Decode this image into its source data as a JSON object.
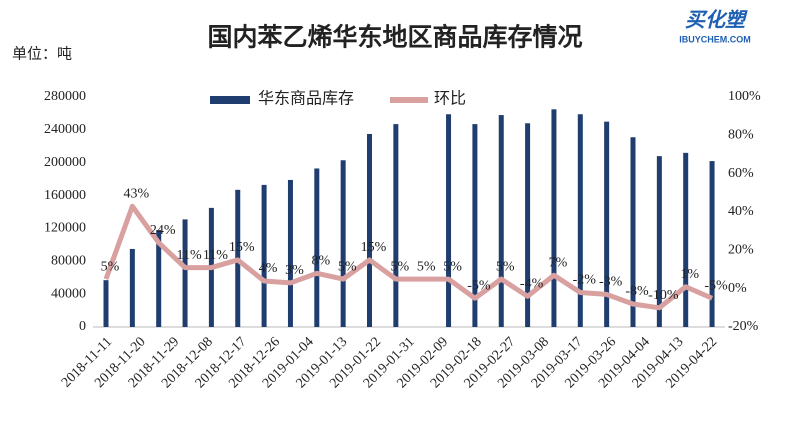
{
  "chart_data": {
    "type": "bar_line",
    "title": "国内苯乙烯华东地区商品库存情况",
    "unit_label": "单位：吨",
    "logo": {
      "main": "买化塑",
      "sub": "IBUYCHEM.COM"
    },
    "categories": [
      null,
      null,
      null,
      null,
      null,
      null,
      null,
      null,
      null,
      null,
      null,
      null,
      null,
      null,
      null,
      null,
      null,
      null,
      null,
      null,
      null,
      null,
      null,
      null
    ],
    "x_date_labels": [
      "2018-11-11",
      "2018-11-20",
      "2018-11-29",
      "2018-12-08",
      "2018-12-17",
      "2018-12-26",
      "2019-01-04",
      "2019-01-13",
      "2019-01-22",
      "2019-01-31",
      "2019-02-09",
      "2019-02-18",
      "2019-02-27",
      "2019-03-08",
      "2019-03-17",
      "2019-03-26",
      "2019-04-04",
      "2019-04-13",
      "2019-04-22"
    ],
    "series": [
      {
        "name": "华东商品库存",
        "type": "bar",
        "color": "#1f3d6e",
        "values": [
          57000,
          95000,
          118000,
          131000,
          145000,
          167000,
          173000,
          179000,
          193000,
          203000,
          235000,
          247000,
          null,
          259000,
          247000,
          258000,
          248000,
          265000,
          259000,
          250000,
          231000,
          208000,
          212000,
          202000
        ]
      },
      {
        "name": "环比",
        "type": "line",
        "axis": "y2",
        "color": "#d9a0a0",
        "values": [
          5,
          43,
          24,
          11,
          11,
          15,
          4,
          3,
          8,
          5,
          15,
          5,
          5,
          5,
          -5,
          5,
          -4,
          7,
          -2,
          -3,
          -8,
          -10,
          1,
          -5
        ],
        "value_labels": [
          "5%",
          "43%",
          "24%",
          "11%",
          "11%",
          "15%",
          "4%",
          "3%",
          "8%",
          "5%",
          "15%",
          "5%",
          "5%",
          "5%",
          "-5%",
          "5%",
          "-4%",
          "7%",
          "-2%",
          "-3%",
          "-8%",
          "-10%",
          "1%",
          "-5%"
        ]
      }
    ],
    "ylim": [
      0,
      280000
    ],
    "yticks": [
      0,
      40000,
      80000,
      120000,
      160000,
      200000,
      240000,
      280000
    ],
    "y2lim": [
      -20,
      100
    ],
    "y2ticks": [
      {
        "value": -20,
        "label": "-20%"
      },
      {
        "value": 0,
        "label": "0%"
      },
      {
        "value": 20,
        "label": "20%"
      },
      {
        "value": 40,
        "label": "40%"
      },
      {
        "value": 60,
        "label": "60%"
      },
      {
        "value": 80,
        "label": "80%"
      },
      {
        "value": 100,
        "label": "100%"
      }
    ],
    "legend": "top"
  }
}
